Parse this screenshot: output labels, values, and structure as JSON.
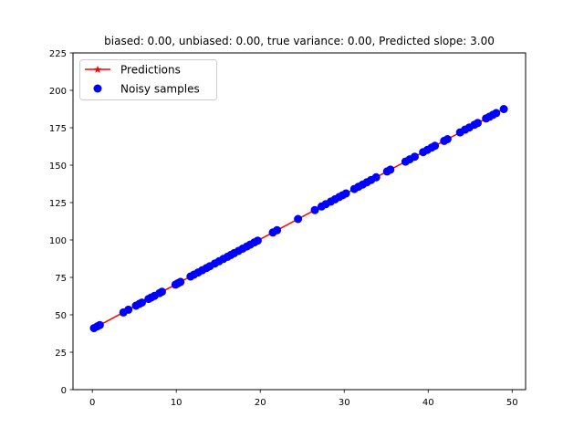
{
  "chart_data": {
    "type": "scatter",
    "title": "biased: 0.00, unbiased: 0.00, true variance: 0.00, Predicted slope: 3.00",
    "xlabel": "",
    "ylabel": "",
    "xlim": [
      -2.3,
      51.6
    ],
    "ylim": [
      0,
      225
    ],
    "xticks": [
      0,
      10,
      20,
      30,
      40,
      50
    ],
    "yticks": [
      0,
      25,
      50,
      75,
      100,
      125,
      150,
      175,
      200,
      225
    ],
    "grid": false,
    "legend_position": "upper left",
    "legend": [
      "Predictions",
      "Noisy samples"
    ],
    "colors": {
      "predictions": "#ff0000",
      "samples": "#0000ff"
    },
    "series": [
      {
        "name": "Predictions",
        "style": "line with star markers",
        "slope": 3.0,
        "intercept": 40.5,
        "x": [
          0.2,
          49.0
        ],
        "y": [
          41.1,
          187.5
        ]
      },
      {
        "name": "Noisy samples",
        "style": "markers",
        "x": [
          0.2,
          0.6,
          0.9,
          3.7,
          4.3,
          5.2,
          5.6,
          5.9,
          6.7,
          7.0,
          7.4,
          8.0,
          8.3,
          9.9,
          10.2,
          10.5,
          11.7,
          12.1,
          12.6,
          13.1,
          13.6,
          14.0,
          14.6,
          15.1,
          15.6,
          16.1,
          16.5,
          16.9,
          17.4,
          17.9,
          18.4,
          18.8,
          19.3,
          19.7,
          21.5,
          22.0,
          24.5,
          26.5,
          27.3,
          27.8,
          28.4,
          28.9,
          29.4,
          29.8,
          30.2,
          31.2,
          31.7,
          32.2,
          32.7,
          33.2,
          33.8,
          35.1,
          35.5,
          37.3,
          37.8,
          38.4,
          39.4,
          39.9,
          40.4,
          40.8,
          41.9,
          42.3,
          43.8,
          44.4,
          44.9,
          45.5,
          45.9,
          46.9,
          47.3,
          47.7,
          48.1,
          49.0
        ],
        "y": [
          41.1,
          42.3,
          43.2,
          51.6,
          53.4,
          56.1,
          57.3,
          58.2,
          60.6,
          61.5,
          62.7,
          64.5,
          65.4,
          70.2,
          71.1,
          72.0,
          75.6,
          76.8,
          78.3,
          79.8,
          81.3,
          82.5,
          84.3,
          85.8,
          87.3,
          88.8,
          90.0,
          91.2,
          92.7,
          94.2,
          95.7,
          96.9,
          98.4,
          99.6,
          105.0,
          106.5,
          114.0,
          120.0,
          122.4,
          123.9,
          125.7,
          127.2,
          128.7,
          129.9,
          131.1,
          134.1,
          135.6,
          137.1,
          138.6,
          140.1,
          141.9,
          145.8,
          147.0,
          152.4,
          153.9,
          155.7,
          158.7,
          160.2,
          161.7,
          162.9,
          166.2,
          167.4,
          171.9,
          173.7,
          175.2,
          177.0,
          178.2,
          181.2,
          182.4,
          183.6,
          184.8,
          187.5
        ]
      }
    ]
  },
  "figure": {
    "title": "biased: 0.00, unbiased: 0.00, true variance: 0.00, Predicted slope: 3.00",
    "legend": {
      "predictions_label": "Predictions",
      "samples_label": "Noisy samples"
    },
    "xtick_labels": [
      "0",
      "10",
      "20",
      "30",
      "40",
      "50"
    ],
    "ytick_labels": [
      "0",
      "25",
      "50",
      "75",
      "100",
      "125",
      "150",
      "175",
      "200",
      "225"
    ]
  }
}
